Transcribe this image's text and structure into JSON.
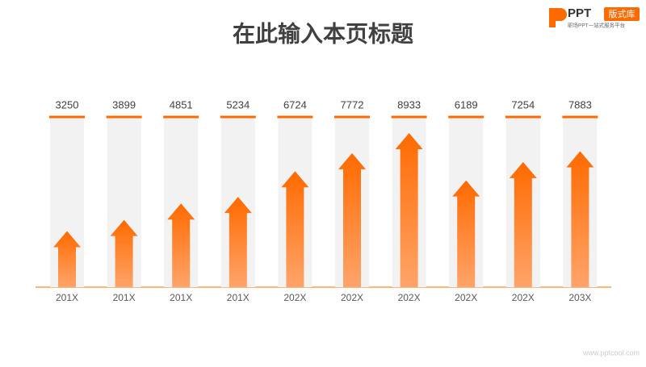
{
  "chart_data": {
    "type": "arrow",
    "title": "在此输入本页标题",
    "categories": [
      "201X",
      "201X",
      "201X",
      "201X",
      "202X",
      "202X",
      "202X",
      "202X",
      "202X",
      "203X"
    ],
    "values": [
      3250,
      3899,
      4851,
      5234,
      6724,
      7772,
      8933,
      6189,
      7254,
      7883
    ],
    "color": "#ff6a00"
  },
  "logo": {
    "brand": "PPT",
    "badge": "版式库",
    "slogan": "职场PPT一站式服务平台"
  },
  "watermark": "www.pptcool.com"
}
